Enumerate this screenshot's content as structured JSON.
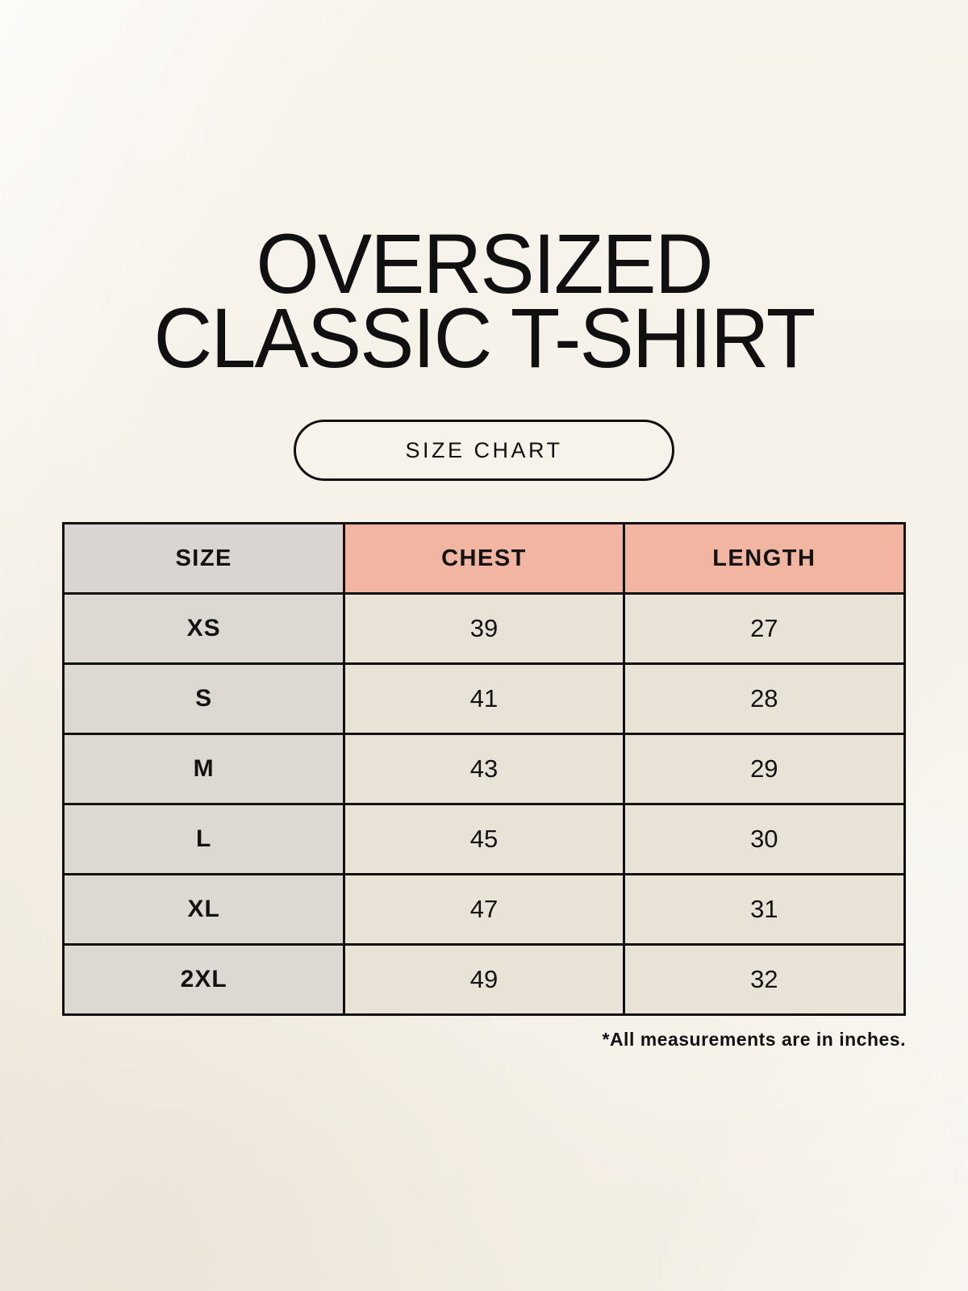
{
  "poster": {
    "title_line1": "OVERSIZED",
    "title_line2": "CLASSIC T-SHIRT",
    "badge_label": "SIZE CHART",
    "footnote": "*All measurements are in inches."
  },
  "colors": {
    "page_background": "#f6f2e9",
    "size_column_bg": "#ded8d3",
    "size_header_bg": "#dbd5d1",
    "header_accent_bg": "#f2b5a2",
    "data_cell_bg": "#e9e2d6",
    "table_border": "#121212",
    "text": "#101010"
  },
  "chart_data": {
    "type": "table",
    "title": "SIZE CHART",
    "subtitle": "OVERSIZED CLASSIC T-SHIRT",
    "columns": [
      "SIZE",
      "CHEST",
      "LENGTH"
    ],
    "rows": [
      [
        "XS",
        "39",
        "27"
      ],
      [
        "S",
        "41",
        "28"
      ],
      [
        "M",
        "43",
        "29"
      ],
      [
        "L",
        "45",
        "30"
      ],
      [
        "XL",
        "47",
        "31"
      ],
      [
        "2XL",
        "49",
        "32"
      ]
    ],
    "units": "inches",
    "note": "*All measurements are in inches.",
    "layout": {
      "header_row": true,
      "grid": true,
      "columns_equal_width": true
    }
  }
}
